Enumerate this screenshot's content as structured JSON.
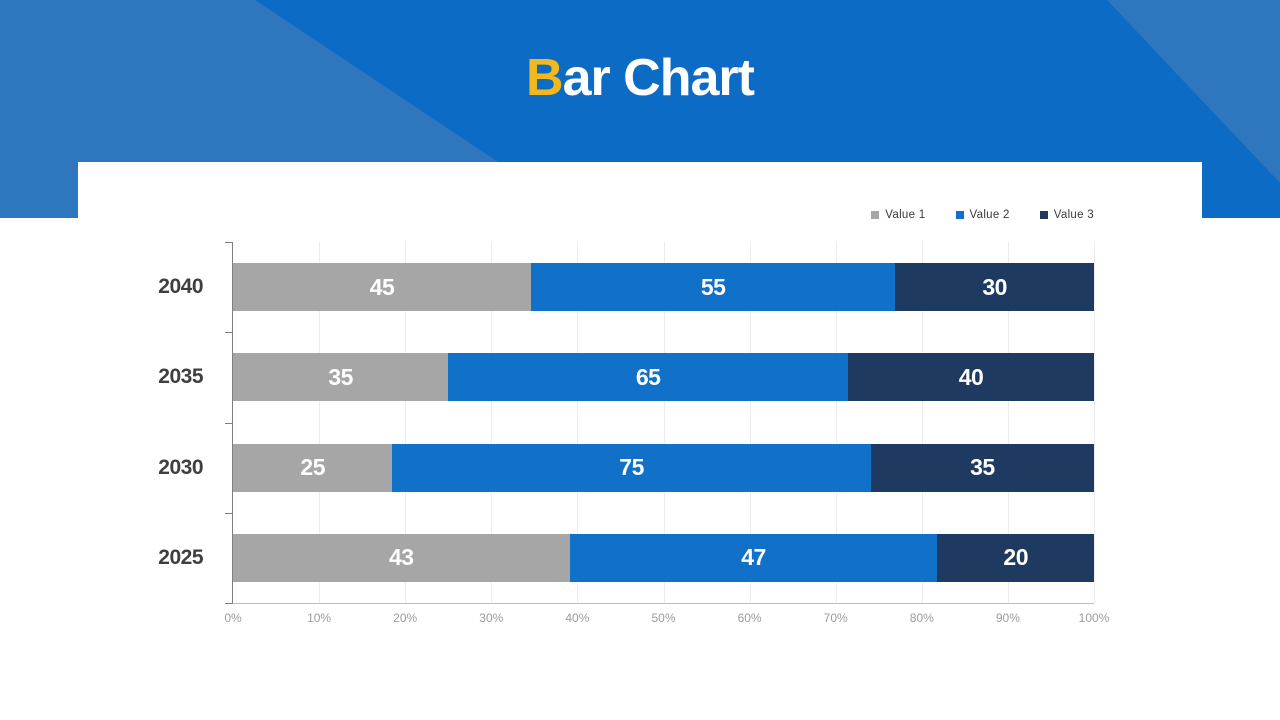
{
  "header": {
    "title_accent": "B",
    "title_rest": "ar Chart",
    "accent_color": "#F2B81D",
    "title_color": "#FFFFFF",
    "background_color": "#0C6BC5",
    "overlay_color": "#2E76BD"
  },
  "chart_data": {
    "type": "bar",
    "orientation": "horizontal",
    "stacked": true,
    "stacked_100_percent": true,
    "title": "Bar Chart",
    "categories": [
      "2040",
      "2035",
      "2030",
      "2025"
    ],
    "series": [
      {
        "name": "Value 1",
        "color": "#A6A6A6",
        "values": [
          45,
          35,
          25,
          43
        ]
      },
      {
        "name": "Value 2",
        "color": "#1170C8",
        "values": [
          55,
          65,
          75,
          47
        ]
      },
      {
        "name": "Value 3",
        "color": "#1E3A60",
        "values": [
          30,
          40,
          35,
          20
        ]
      }
    ],
    "x_axis": {
      "range": [
        0,
        100
      ],
      "tick_labels": [
        "0%",
        "10%",
        "20%",
        "30%",
        "40%",
        "50%",
        "60%",
        "70%",
        "80%",
        "90%",
        "100%"
      ]
    },
    "legend_position": "top-right",
    "grid": true,
    "data_labels_shown": true
  }
}
